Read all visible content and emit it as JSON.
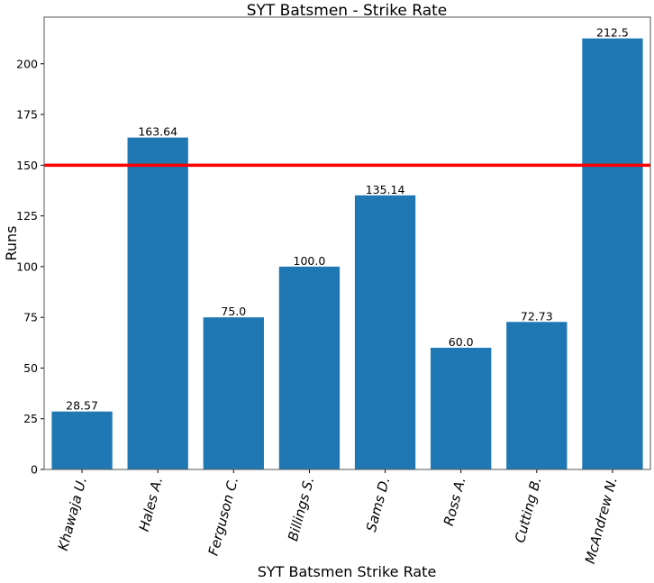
{
  "chart_data": {
    "type": "bar",
    "title": "SYT Batsmen - Strike Rate",
    "xlabel": "SYT Batsmen Strike Rate",
    "ylabel": "Runs",
    "categories": [
      "Khawaja U.",
      "Hales A.",
      "Ferguson C.",
      "Billings S.",
      "Sams D.",
      "Ross A.",
      "Cutting B.",
      "McAndrew N."
    ],
    "values": [
      28.57,
      163.64,
      75.0,
      100.0,
      135.14,
      60.0,
      72.73,
      212.5
    ],
    "value_labels": [
      "28.57",
      "163.64",
      "75.0",
      "100.0",
      "135.14",
      "60.0",
      "72.73",
      "212.5"
    ],
    "yticks": [
      0,
      25,
      50,
      75,
      100,
      125,
      150,
      175,
      200
    ],
    "ylim": [
      0,
      223
    ],
    "reference_line": 150,
    "grid": false,
    "colors": {
      "bar": "#1f77b4",
      "reference_line": "#ff0000"
    }
  }
}
